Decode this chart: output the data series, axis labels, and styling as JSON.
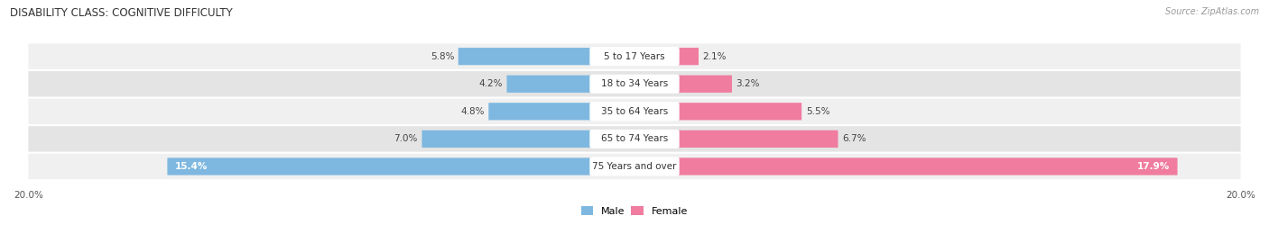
{
  "title": "DISABILITY CLASS: COGNITIVE DIFFICULTY",
  "source": "Source: ZipAtlas.com",
  "categories": [
    "5 to 17 Years",
    "18 to 34 Years",
    "35 to 64 Years",
    "65 to 74 Years",
    "75 Years and over"
  ],
  "male_values": [
    5.8,
    4.2,
    4.8,
    7.0,
    15.4
  ],
  "female_values": [
    2.1,
    3.2,
    5.5,
    6.7,
    17.9
  ],
  "max_val": 20.0,
  "male_color": "#7eb8e0",
  "female_color": "#f07ca0",
  "row_colors": [
    "#f0f0f0",
    "#e4e4e4"
  ],
  "bg_color": "#ffffff",
  "label_fontsize": 7.5,
  "title_fontsize": 8.5,
  "source_fontsize": 7.0,
  "legend_fontsize": 8.0,
  "axis_label_fontsize": 7.5
}
